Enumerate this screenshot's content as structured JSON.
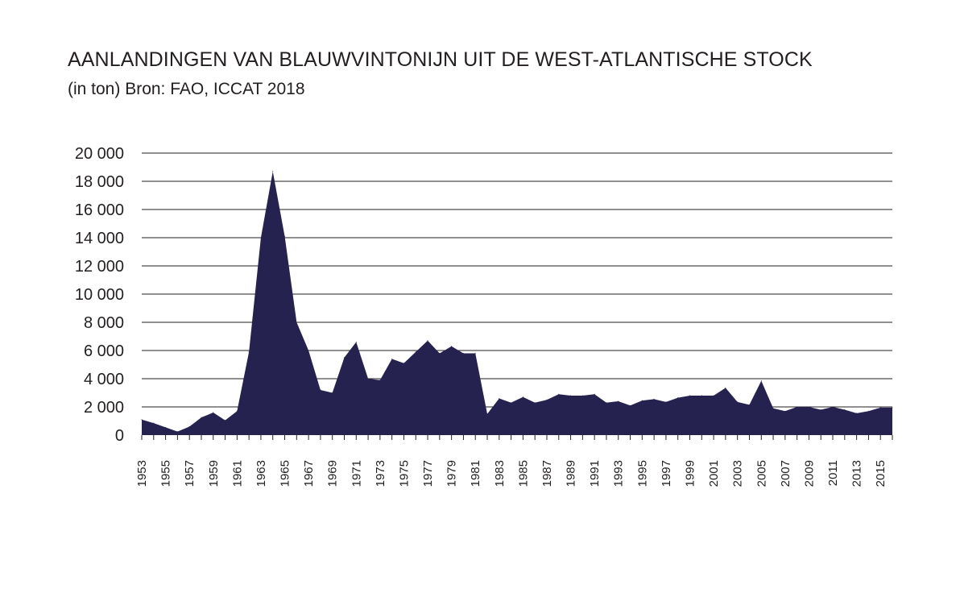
{
  "chart_data": {
    "type": "area",
    "title": "AANLANDINGEN VAN BLAUWVINTONIJN UIT DE WEST-ATLANTISCHE STOCK",
    "subtitle": "(in ton) Bron: FAO, ICCAT 2018",
    "xlabel": "",
    "ylabel": "",
    "ylim": [
      0,
      20000
    ],
    "yticks": [
      "0",
      "2 000",
      "4 000",
      "6 000",
      "8 000",
      "10 000",
      "12 000",
      "14 000",
      "16 000",
      "18 000",
      "20 000"
    ],
    "xtick_labels": [
      "1953",
      "1955",
      "1957",
      "1959",
      "1961",
      "1963",
      "1965",
      "1967",
      "1969",
      "1971",
      "1973",
      "1975",
      "1977",
      "1979",
      "1981",
      "1983",
      "1985",
      "1987",
      "1989",
      "1991",
      "1993",
      "1995",
      "1997",
      "1999",
      "2001",
      "2003",
      "2005",
      "2007",
      "2009",
      "2011",
      "2013",
      "2015"
    ],
    "grid": true,
    "fill_color": "#25224f",
    "x": [
      1953,
      1954,
      1955,
      1956,
      1957,
      1958,
      1959,
      1960,
      1961,
      1962,
      1963,
      1964,
      1965,
      1966,
      1967,
      1968,
      1969,
      1970,
      1971,
      1972,
      1973,
      1974,
      1975,
      1976,
      1977,
      1978,
      1979,
      1980,
      1981,
      1982,
      1983,
      1984,
      1985,
      1986,
      1987,
      1988,
      1989,
      1990,
      1991,
      1992,
      1993,
      1994,
      1995,
      1996,
      1997,
      1998,
      1999,
      2000,
      2001,
      2002,
      2003,
      2004,
      2005,
      2006,
      2007,
      2008,
      2009,
      2010,
      2011,
      2012,
      2013,
      2014,
      2015,
      2016
    ],
    "values": [
      1100,
      850,
      550,
      250,
      600,
      1250,
      1600,
      1050,
      1700,
      5900,
      14000,
      18700,
      14100,
      8000,
      6000,
      3200,
      3000,
      5500,
      6600,
      4000,
      3900,
      5400,
      5100,
      5900,
      6700,
      5800,
      6300,
      5800,
      5800,
      1500,
      2600,
      2300,
      2700,
      2300,
      2500,
      2900,
      2800,
      2800,
      2900,
      2300,
      2400,
      2100,
      2450,
      2550,
      2350,
      2650,
      2800,
      2800,
      2800,
      3350,
      2350,
      2150,
      3850,
      1900,
      1700,
      2000,
      2000,
      1800,
      2000,
      1800,
      1550,
      1700,
      1950,
      1950
    ]
  }
}
